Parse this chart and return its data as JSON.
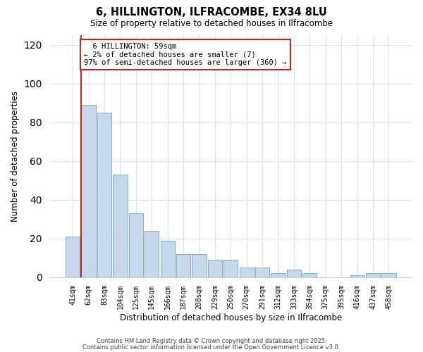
{
  "title": "6, HILLINGTON, ILFRACOMBE, EX34 8LU",
  "subtitle": "Size of property relative to detached houses in Ilfracombe",
  "xlabel": "Distribution of detached houses by size in Ilfracombe",
  "ylabel": "Number of detached properties",
  "bar_labels": [
    "41sqm",
    "62sqm",
    "83sqm",
    "104sqm",
    "125sqm",
    "145sqm",
    "166sqm",
    "187sqm",
    "208sqm",
    "229sqm",
    "250sqm",
    "270sqm",
    "291sqm",
    "312sqm",
    "333sqm",
    "354sqm",
    "375sqm",
    "395sqm",
    "416sqm",
    "437sqm",
    "458sqm"
  ],
  "bar_values": [
    21,
    89,
    85,
    53,
    33,
    24,
    19,
    12,
    12,
    9,
    9,
    5,
    5,
    2,
    4,
    2,
    0,
    0,
    1,
    2,
    2
  ],
  "bar_color": "#c8d8ec",
  "bar_edge_color": "#7bafd4",
  "vline_color": "#cc2222",
  "annotation_title": "6 HILLINGTON: 59sqm",
  "annotation_line1": "← 2% of detached houses are smaller (7)",
  "annotation_line2": "97% of semi-detached houses are larger (360) →",
  "annotation_box_facecolor": "#ffffff",
  "annotation_box_edgecolor": "#cc2222",
  "ylim": [
    0,
    125
  ],
  "yticks": [
    0,
    20,
    40,
    60,
    80,
    100,
    120
  ],
  "footer1": "Contains HM Land Registry data © Crown copyright and database right 2025.",
  "footer2": "Contains public sector information licensed under the Open Government Licence v3.0.",
  "background_color": "#ffffff",
  "grid_color": "#d8e4f0"
}
